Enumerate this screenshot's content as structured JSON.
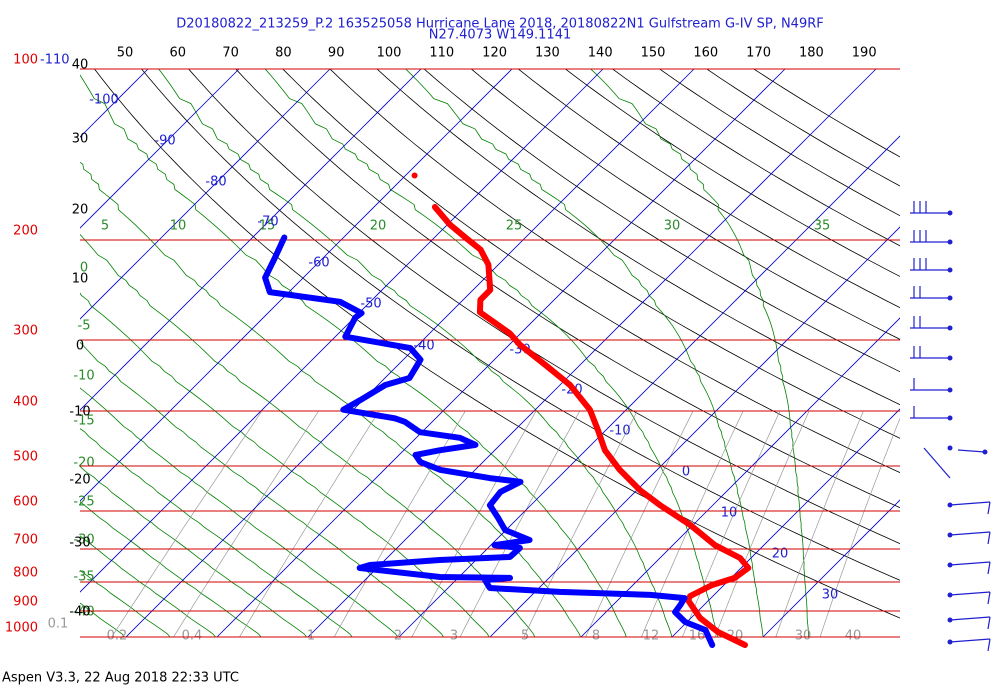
{
  "chart_data": {
    "type": "skewt",
    "title": "D20180822_213259_P.2 163525058 Hurricane Lane 2018, 20180822N1 Gulfstream G-IV SP, N49RF",
    "subtitle": "N27.4073 W149.1141",
    "ylim": [
      1000,
      100
    ],
    "yticks": [
      100,
      200,
      300,
      400,
      500,
      600,
      700,
      800,
      900,
      1000
    ],
    "isotherms": [
      -110,
      -100,
      -90,
      -80,
      -70,
      -60,
      -50,
      -40,
      -30,
      -20,
      -10,
      0,
      10,
      20,
      30
    ],
    "temperature_labels": [
      40,
      30,
      20,
      10,
      0,
      -10,
      -20,
      -30,
      -40
    ],
    "dry_adiabats": [
      50,
      60,
      70,
      80,
      90,
      100,
      110,
      120,
      130,
      140,
      150,
      160,
      170,
      180,
      190
    ],
    "moist_adiabats_low": [
      0,
      -5,
      -10,
      -15,
      -20,
      -25,
      -30,
      -35,
      -40
    ],
    "moist_adiabats_high": [
      5,
      10,
      15,
      20,
      25,
      30,
      35
    ],
    "mixing_ratios": [
      0.1,
      0.2,
      0.4,
      1,
      2,
      3,
      5,
      8,
      12,
      16,
      20,
      30,
      40
    ],
    "series": [
      {
        "color": "#ff0000",
        "pressure": [
          1033,
          980,
          926,
          861,
          847,
          810,
          787,
          756,
          726,
          689,
          635,
          586,
          551,
          508,
          469,
          432,
          398,
          360,
          332,
          306,
          292,
          268,
          255,
          245,
          221,
          208,
          198,
          188,
          175,
          null,
          154
        ],
        "values": [
          28.9,
          24.5,
          21.0,
          17.7,
          17.5,
          18.7,
          20.4,
          20.8,
          18.8,
          14.6,
          9.7,
          4.2,
          0.3,
          -4.1,
          -7.9,
          -10.9,
          -14.0,
          -18.9,
          -23.8,
          -28.8,
          -31.2,
          -36.8,
          -38.1,
          -38.1,
          -41.1,
          -43.6,
          -46.6,
          -49.7,
          -53.3,
          null,
          -59.0
        ]
      },
      {
        "color": "#0000ff",
        "pressure": [
          1033,
          972,
          941,
          904,
          878,
          854,
          843,
          833,
          820,
          794,
          787,
          784,
          756,
          747,
          732,
          723,
          697,
          689,
          675,
          648,
          617,
          586,
          555,
          533,
          525,
          508,
          492,
          478,
          469,
          459,
          446,
          436,
          418,
          412,
          398,
          383,
          360,
          350,
          325,
          310,
          296,
          274,
          269,
          257,
          247,
          233,
          215,
          198
        ],
        "values": [
          25.3,
          22.9,
          19.8,
          17.6,
          17.4,
          17.1,
          13.0,
          2.7,
          -5.4,
          -6.8,
          -4.3,
          -12.1,
          -21.9,
          -21.1,
          -14.0,
          -6.6,
          -6.5,
          -9.6,
          -6.3,
          -10.1,
          -12.2,
          -14.5,
          -14.8,
          -13.7,
          -17.5,
          -23.8,
          -26.9,
          -28.2,
          -26.0,
          -22.7,
          -25.2,
          -30.2,
          -33.0,
          -34.5,
          -41.1,
          -40.3,
          -39.2,
          -37.3,
          -38.1,
          -40.5,
          -48.9,
          -49.9,
          -49.7,
          -53.3,
          -62.1,
          -64.2,
          -65.3,
          -66.5
        ]
      }
    ]
  },
  "footer": "Aspen V3.3, 22 Aug 2018  22:33 UTC"
}
